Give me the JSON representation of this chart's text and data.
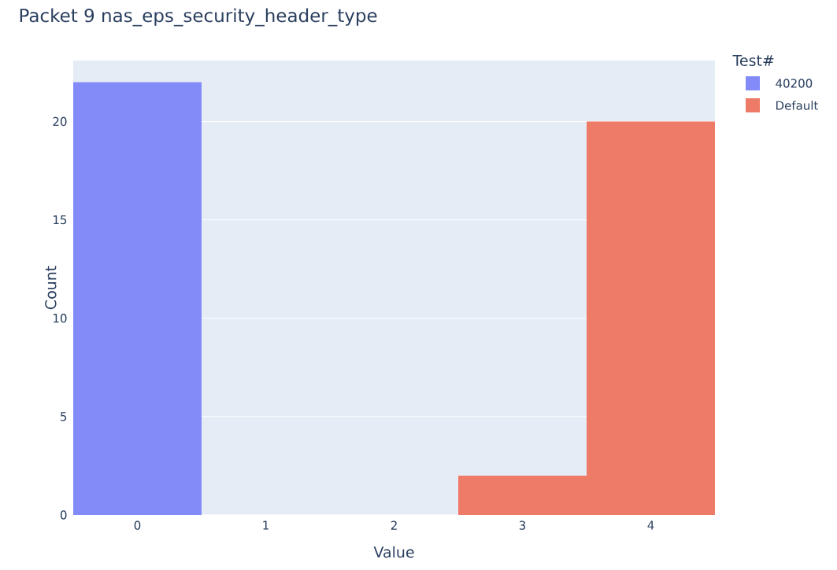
{
  "chart_data": {
    "type": "histogram",
    "title": "Packet 9 nas_eps_security_header_type",
    "xlabel": "Value",
    "ylabel": "Count",
    "legend_title": "Test#",
    "bins": [
      -0.5,
      0.5,
      1.5,
      2.5,
      3.5,
      4.5
    ],
    "series": [
      {
        "name": "40200",
        "color": "#838bf9",
        "values": [
          22,
          0,
          0,
          0,
          0
        ]
      },
      {
        "name": "Default",
        "color": "#ee7b67",
        "values": [
          0,
          0,
          0,
          2,
          20
        ]
      }
    ],
    "xlim": [
      -0.5,
      4.5
    ],
    "xticks": [
      0,
      1,
      2,
      3,
      4
    ],
    "ylim": [
      0,
      23.1
    ],
    "yticks": [
      0,
      5,
      10,
      15,
      20
    ],
    "grid": "y",
    "legend": "top right"
  }
}
